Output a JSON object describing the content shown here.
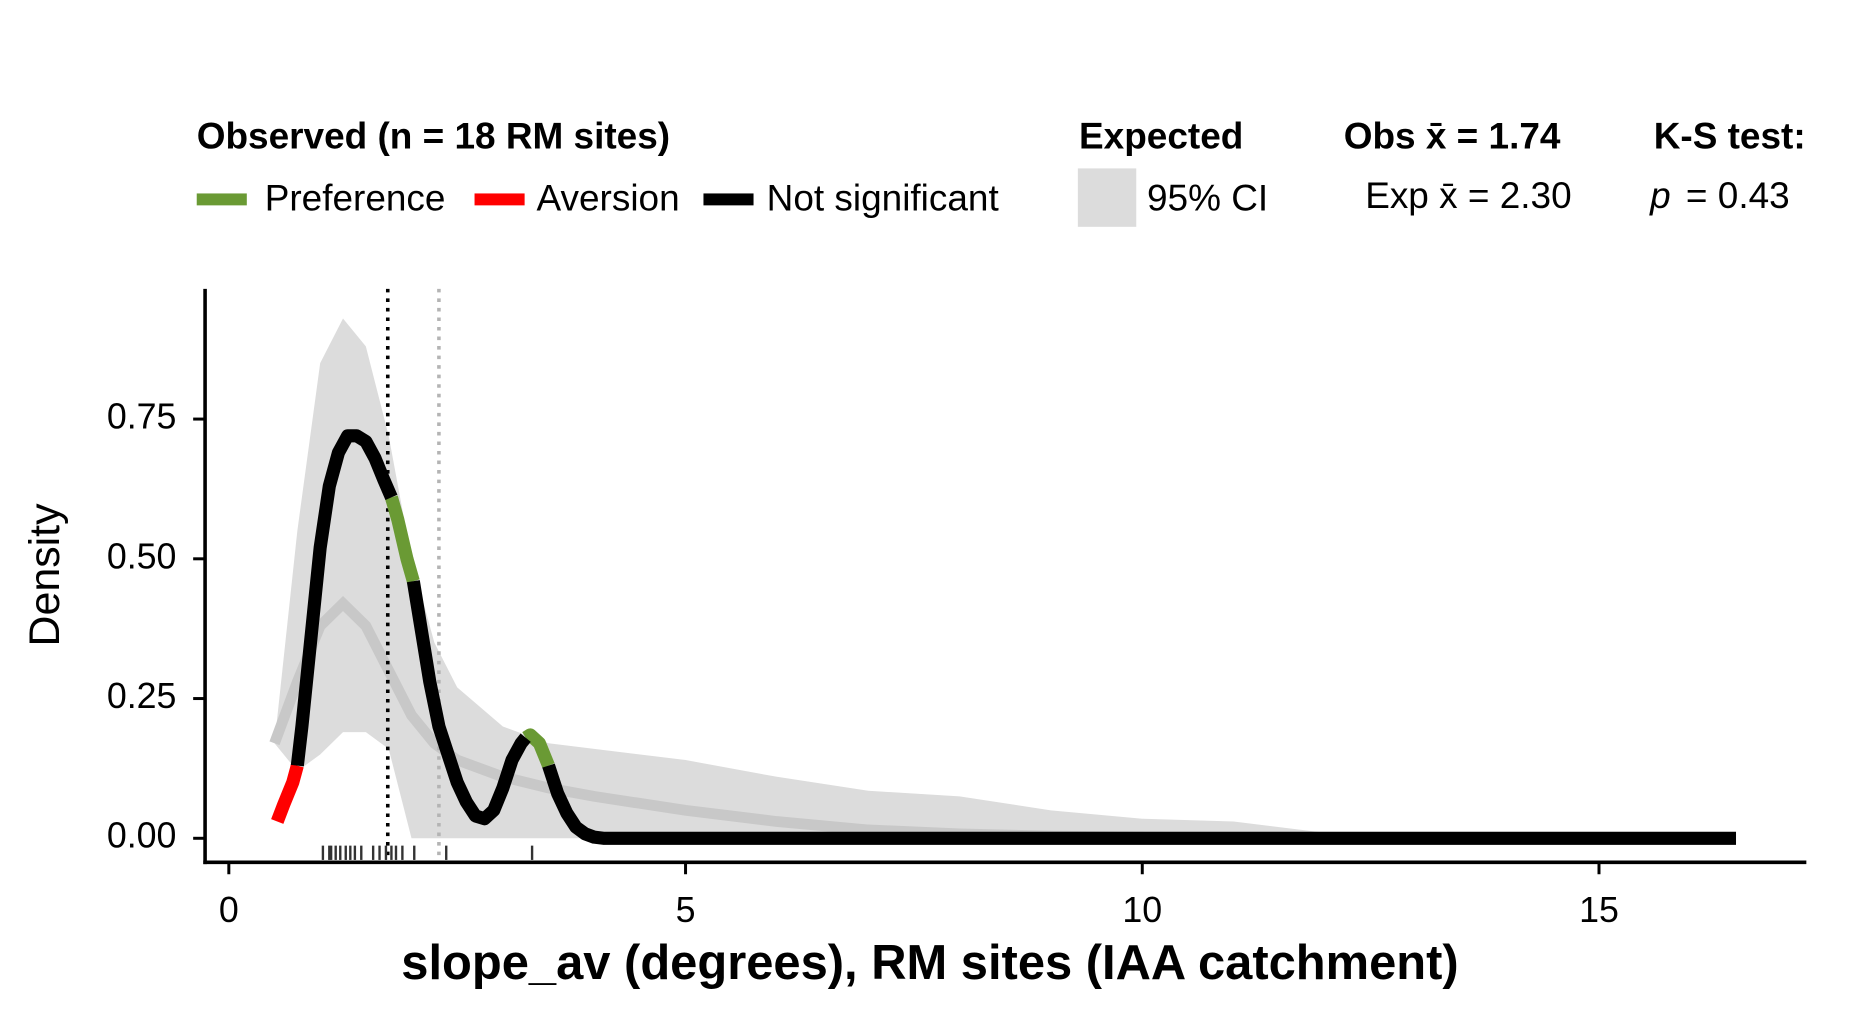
{
  "chart_data": {
    "type": "density",
    "x_label": "slope_av (degrees), RM sites (IAA catchment)",
    "y_label": "Density",
    "xlim": [
      -0.26,
      17.27
    ],
    "ylim": [
      -0.043,
      0.983
    ],
    "xticks": [
      0,
      5,
      10,
      15
    ],
    "yticks": [
      {
        "value": 0,
        "label": "0.00"
      },
      {
        "value": 0.25,
        "label": "0.25"
      },
      {
        "value": 0.5,
        "label": "0.50"
      },
      {
        "value": 0.75,
        "label": "0.75"
      }
    ],
    "legend": {
      "observed_title": "Observed (n = 18 RM sites)",
      "expected_title": "Expected",
      "ci_label": "95% CI",
      "ci_color": "#dcdcdc"
    },
    "annotations": {
      "obs_mean": {
        "text": "Obs x̄ = 1.74",
        "value": 1.74,
        "color": "#000000"
      },
      "exp_mean": {
        "text": "Exp x̄ = 2.30",
        "value": 2.3,
        "color": "#b4b4b4"
      },
      "ks_title": "K-S test:",
      "ks_p_symbol": "p",
      "ks_p_text": "= 0.43"
    },
    "x": [
      0.53,
      0.6,
      0.7,
      0.75,
      0.8,
      0.9,
      1.0,
      1.1,
      1.2,
      1.3,
      1.4,
      1.5,
      1.6,
      1.7,
      1.78,
      1.85,
      1.95,
      2.02,
      2.1,
      2.2,
      2.3,
      2.4,
      2.5,
      2.6,
      2.7,
      2.8,
      2.9,
      3.0,
      3.1,
      3.2,
      3.25,
      3.3,
      3.4,
      3.5,
      3.6,
      3.7,
      3.8,
      3.9,
      4.0,
      4.1,
      16.5
    ],
    "series": [
      {
        "name": "Preference",
        "color": "#6a9a34",
        "values": [
          null,
          null,
          null,
          null,
          null,
          null,
          null,
          null,
          null,
          null,
          null,
          null,
          null,
          null,
          0.61,
          0.57,
          0.5,
          0.46,
          null,
          null,
          null,
          null,
          null,
          null,
          null,
          null,
          null,
          null,
          null,
          null,
          0.18,
          0.185,
          0.17,
          0.13,
          null,
          null,
          null,
          null,
          null,
          null,
          null
        ]
      },
      {
        "name": "Aversion",
        "color": "#ff0000",
        "values": [
          0.03,
          0.06,
          0.1,
          0.13,
          null,
          null,
          null,
          null,
          null,
          null,
          null,
          null,
          null,
          null,
          null,
          null,
          null,
          null,
          null,
          null,
          null,
          null,
          null,
          null,
          null,
          null,
          null,
          null,
          null,
          null,
          null,
          null,
          null,
          null,
          null,
          null,
          null,
          null,
          null,
          null,
          null
        ]
      },
      {
        "name": "Not significant",
        "color": "#000000",
        "values": [
          null,
          null,
          null,
          0.13,
          0.2,
          0.36,
          0.52,
          0.63,
          0.69,
          0.72,
          0.72,
          0.71,
          0.68,
          0.64,
          0.61,
          null,
          null,
          0.46,
          0.38,
          0.28,
          0.2,
          0.15,
          0.1,
          0.065,
          0.04,
          0.035,
          0.05,
          0.09,
          0.14,
          0.17,
          0.18,
          null,
          null,
          0.13,
          0.08,
          0.045,
          0.02,
          0.008,
          0.002,
          0,
          0
        ]
      }
    ],
    "expected": {
      "x": [
        0.5,
        0.75,
        1.0,
        1.25,
        1.5,
        1.75,
        2.0,
        2.25,
        2.5,
        3,
        3.5,
        4,
        5,
        6,
        7,
        8,
        9,
        10,
        11,
        12,
        12.6
      ],
      "upper": [
        0.17,
        0.55,
        0.85,
        0.93,
        0.88,
        0.72,
        0.5,
        0.35,
        0.27,
        0.2,
        0.17,
        0.16,
        0.14,
        0.11,
        0.085,
        0.075,
        0.05,
        0.035,
        0.03,
        0.01,
        0
      ],
      "lower": [
        0.17,
        0.12,
        0.15,
        0.19,
        0.19,
        0.16,
        0,
        0,
        0,
        0,
        0,
        0,
        0,
        0,
        0,
        0,
        0,
        0,
        0,
        0,
        0
      ],
      "mean": [
        0.17,
        0.28,
        0.38,
        0.42,
        0.38,
        0.3,
        0.22,
        0.17,
        0.14,
        0.11,
        0.09,
        0.075,
        0.05,
        0.03,
        0.015,
        0.008,
        0.004,
        0.002,
        0.001,
        0,
        0
      ],
      "mean_color": "#c8c8c8"
    },
    "rug": [
      1.03,
      1.1,
      1.12,
      1.17,
      1.22,
      1.28,
      1.33,
      1.38,
      1.45,
      1.58,
      1.65,
      1.72,
      1.78,
      1.83,
      1.9,
      2.03,
      2.38,
      3.32
    ]
  }
}
